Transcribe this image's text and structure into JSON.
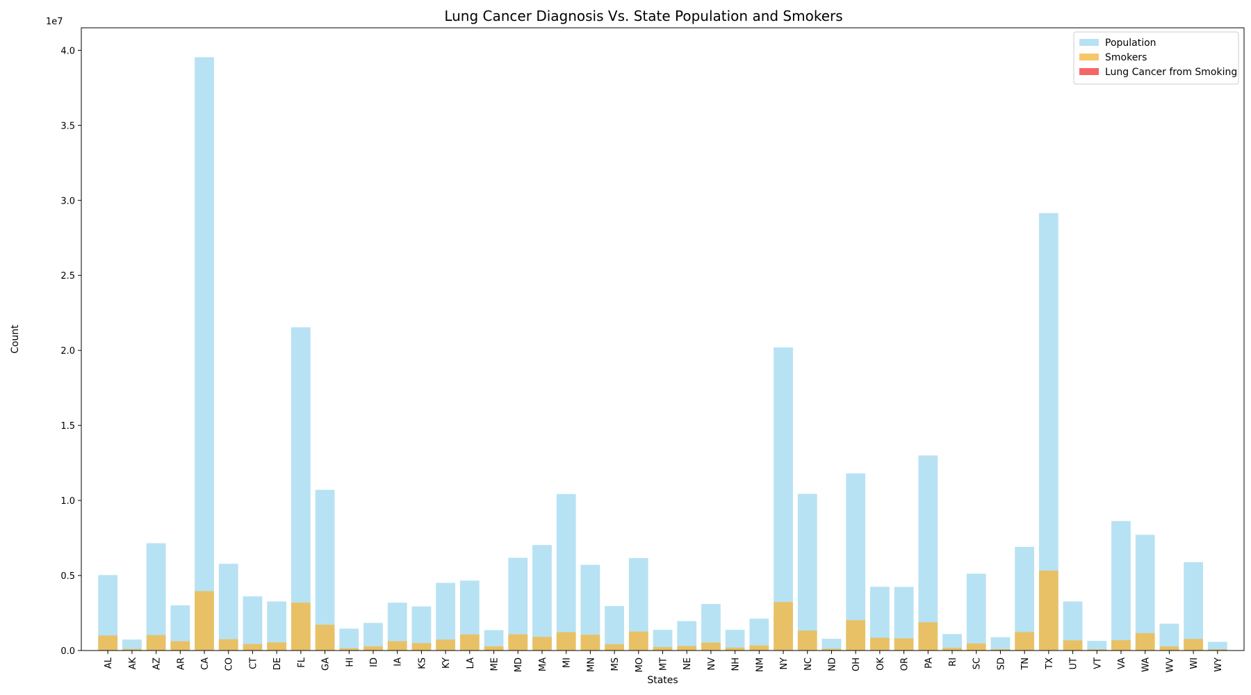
{
  "chart_data": {
    "type": "bar",
    "title": "Lung Cancer Diagnosis Vs. State Population and Smokers",
    "xlabel": "States",
    "ylabel": "Count",
    "y_scale_label": "1e7",
    "ylim": [
      0,
      41500000
    ],
    "y_ticks": [
      0,
      5000000,
      10000000,
      15000000,
      20000000,
      25000000,
      30000000,
      35000000,
      40000000
    ],
    "y_tick_labels": [
      "0.0",
      "0.5",
      "1.0",
      "1.5",
      "2.0",
      "2.5",
      "3.0",
      "3.5",
      "4.0"
    ],
    "legend_position": "top-right",
    "grid": false,
    "categories": [
      "AL",
      "AK",
      "AZ",
      "AR",
      "CA",
      "CO",
      "CT",
      "DE",
      "FL",
      "GA",
      "HI",
      "ID",
      "IA",
      "KS",
      "KY",
      "LA",
      "ME",
      "MD",
      "MA",
      "MI",
      "MN",
      "MS",
      "MO",
      "MT",
      "NE",
      "NV",
      "NH",
      "NM",
      "NY",
      "NC",
      "ND",
      "OH",
      "OK",
      "OR",
      "PA",
      "RI",
      "SC",
      "SD",
      "TN",
      "TX",
      "UT",
      "VT",
      "VA",
      "WA",
      "WV",
      "WI",
      "WY"
    ],
    "series": [
      {
        "name": "Population",
        "color": "#87ceeb",
        "opacity": 0.6,
        "values": [
          5030000,
          730000,
          7150000,
          3010000,
          39540000,
          5780000,
          3610000,
          3270000,
          21540000,
          10710000,
          1460000,
          1840000,
          3190000,
          2940000,
          4510000,
          4660000,
          1360000,
          6180000,
          7030000,
          10430000,
          5710000,
          2960000,
          6160000,
          1380000,
          1960000,
          3100000,
          1380000,
          2120000,
          20200000,
          10440000,
          780000,
          11800000,
          4250000,
          4240000,
          13000000,
          1100000,
          5120000,
          890000,
          6910000,
          29150000,
          3270000,
          640000,
          8630000,
          7710000,
          1790000,
          5890000,
          580000
        ]
      },
      {
        "name": "Smokers",
        "color": "#f4b942",
        "opacity": 0.8,
        "values": [
          1000000,
          100000,
          1030000,
          620000,
          3960000,
          750000,
          430000,
          540000,
          3190000,
          1720000,
          150000,
          280000,
          620000,
          490000,
          730000,
          1070000,
          280000,
          1080000,
          910000,
          1220000,
          1050000,
          420000,
          1260000,
          230000,
          300000,
          530000,
          200000,
          340000,
          3230000,
          1330000,
          120000,
          2020000,
          850000,
          810000,
          1880000,
          180000,
          470000,
          90000,
          1230000,
          5330000,
          680000,
          80000,
          690000,
          1160000,
          270000,
          770000,
          80000
        ]
      },
      {
        "name": "Lung Cancer from Smoking",
        "color": "#f24040",
        "opacity": 0.8,
        "values": [
          4000,
          400,
          3600,
          2400,
          16000,
          2800,
          2000,
          800,
          14000,
          6000,
          800,
          1000,
          2400,
          2000,
          3600,
          3200,
          1000,
          3200,
          4000,
          6400,
          2800,
          2200,
          4400,
          800,
          1000,
          1600,
          800,
          1000,
          9600,
          6000,
          400,
          8000,
          2800,
          2200,
          8400,
          600,
          3200,
          400,
          4400,
          14400,
          800,
          400,
          4200,
          3600,
          1400,
          3200,
          400
        ]
      }
    ]
  }
}
